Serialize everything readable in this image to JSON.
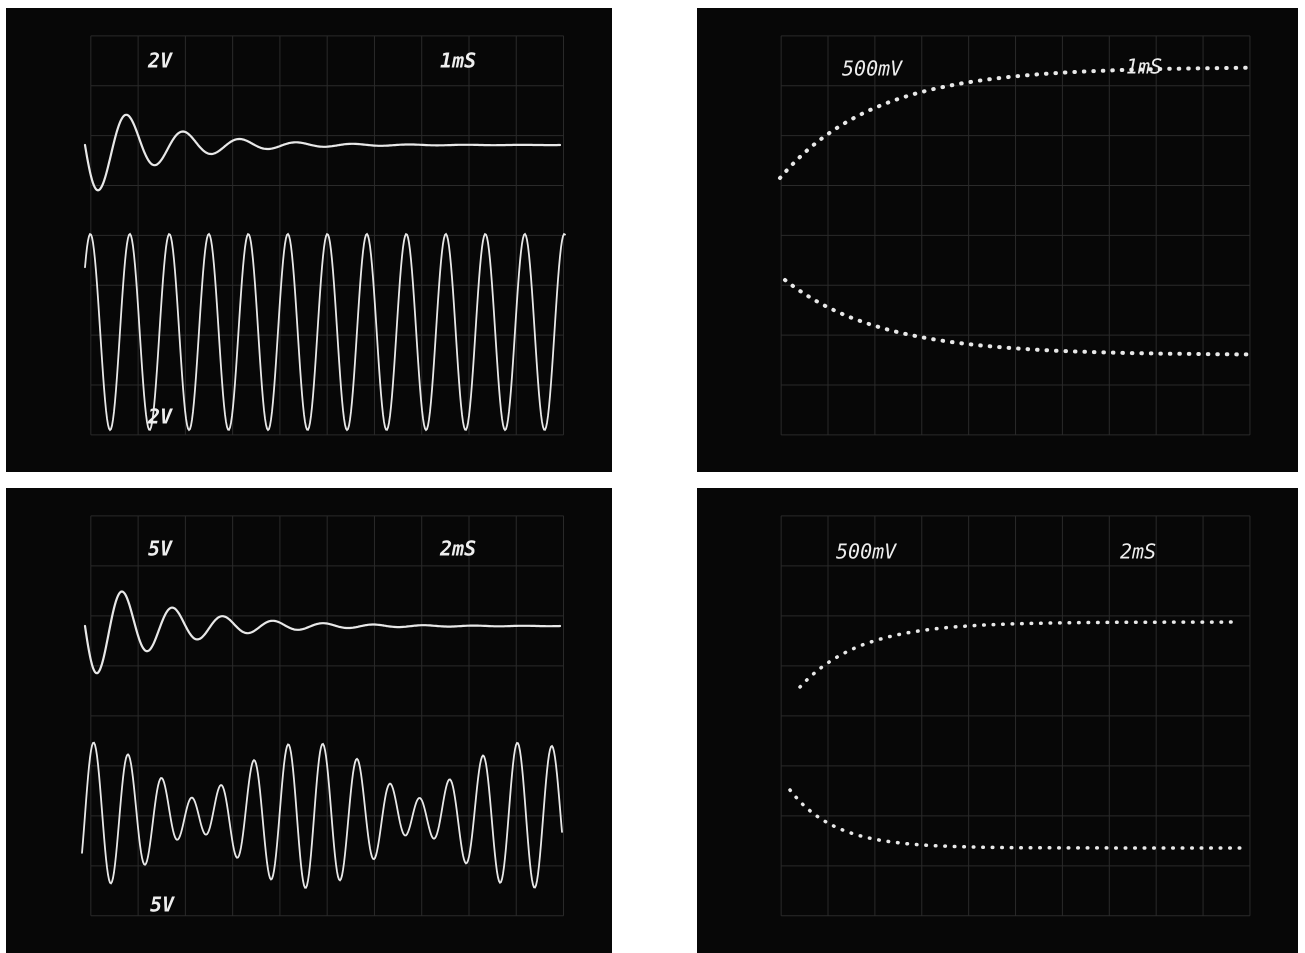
{
  "panels": [
    {
      "volts": "2V",
      "time": "1mS",
      "trace_label": "2V"
    },
    {
      "volts": "500mV",
      "time": "1mS"
    },
    {
      "volts": "5V",
      "time": "2mS",
      "trace_label": "5V"
    },
    {
      "volts": "500mV",
      "time": "2mS"
    }
  ]
}
